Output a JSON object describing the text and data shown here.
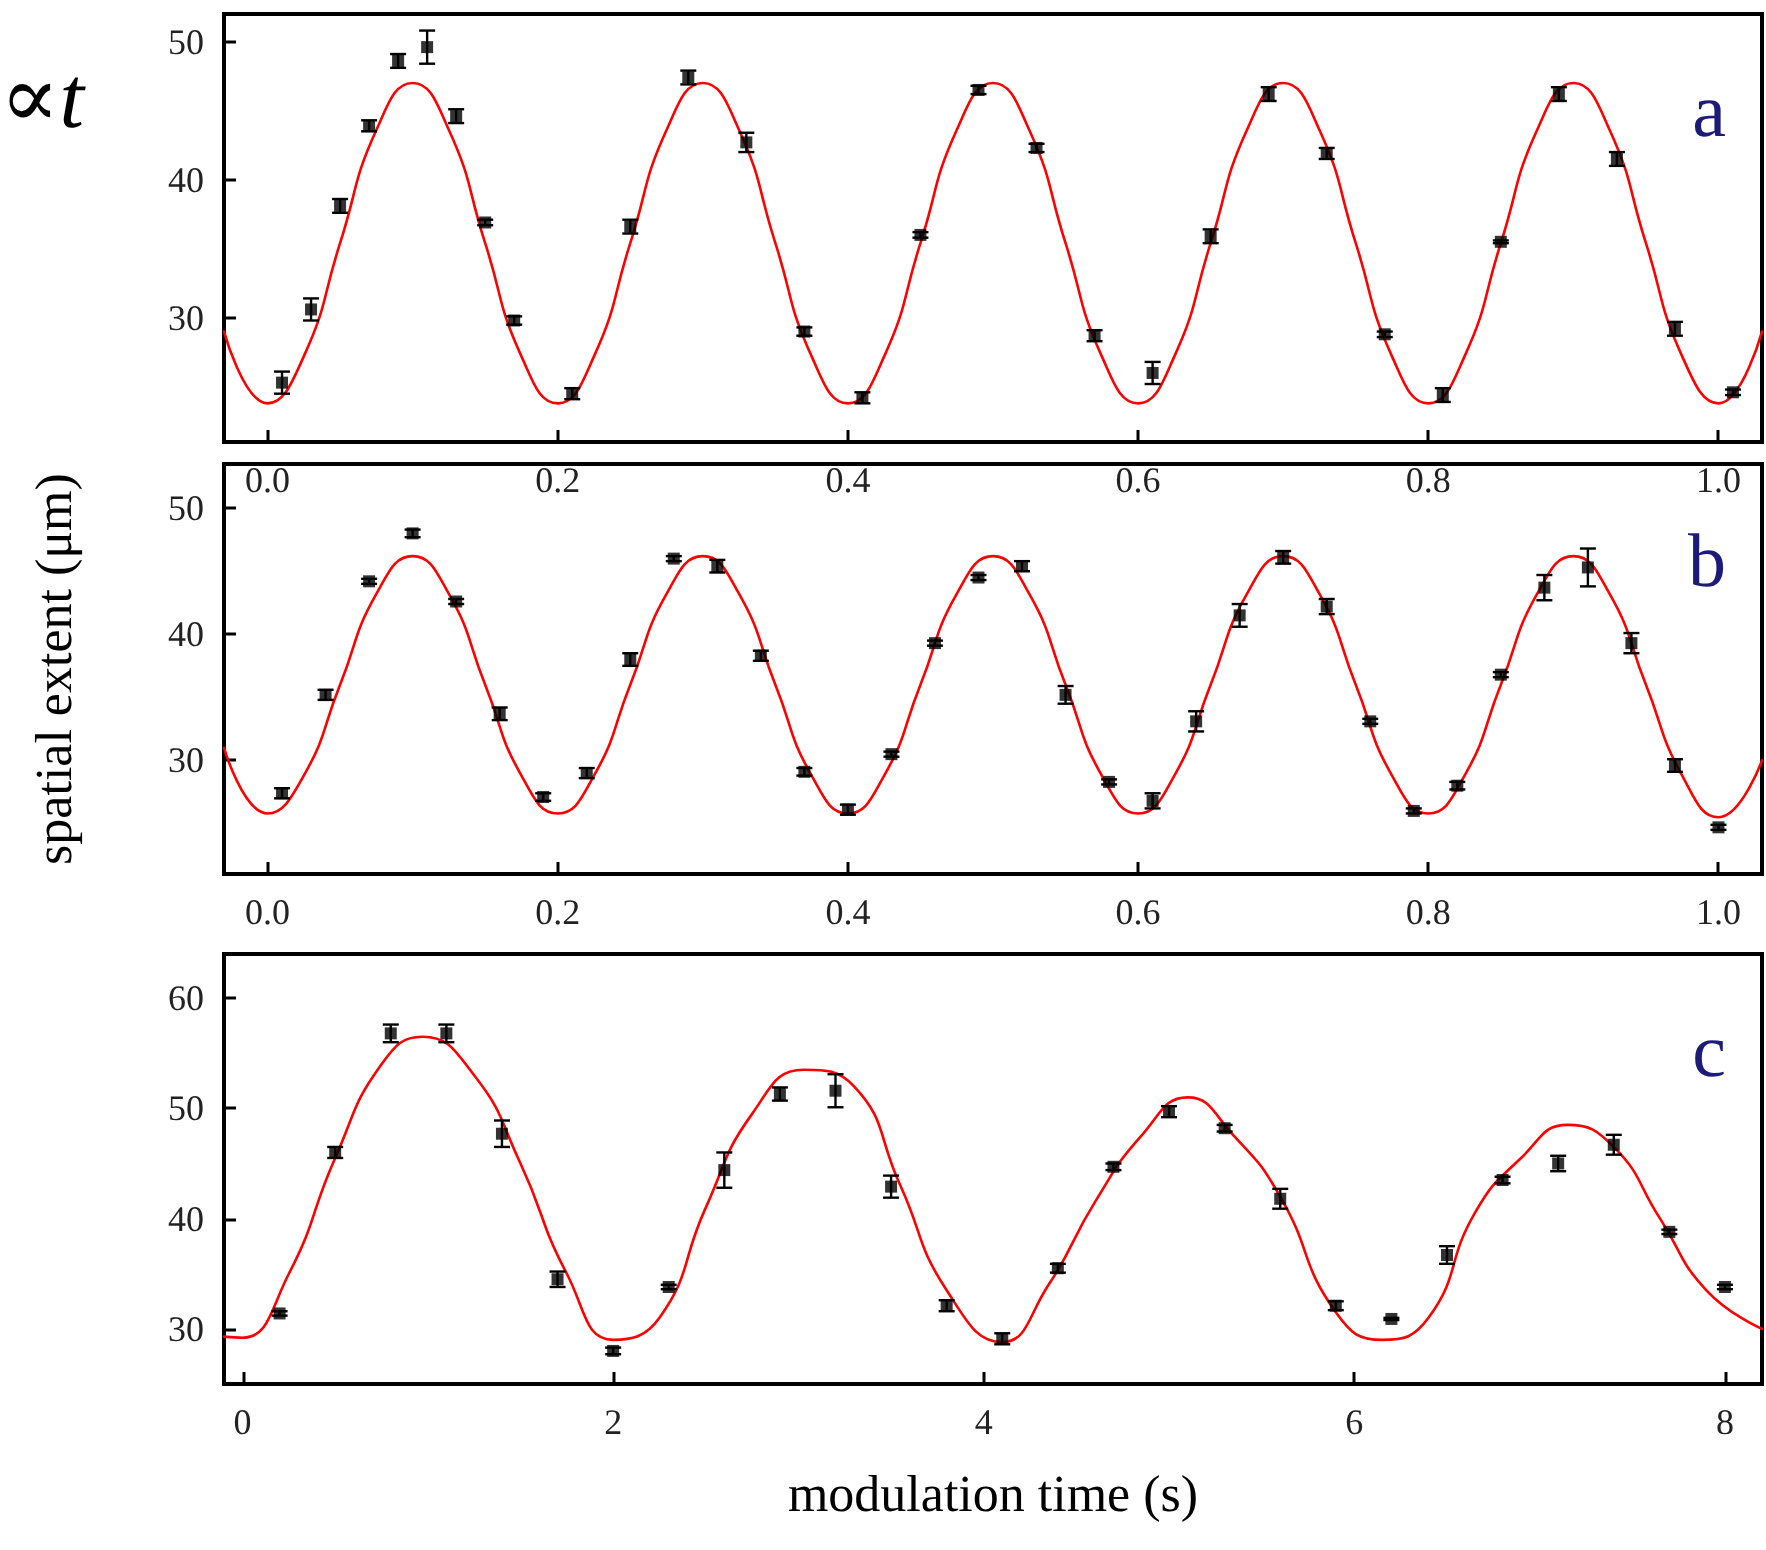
{
  "chart_data": [
    {
      "type": "scatter",
      "annotations": [
        "∝t",
        "a"
      ],
      "xlim": [
        -0.03,
        1.03
      ],
      "xticks": [
        {
          "value": 0,
          "label": "0.0"
        },
        {
          "value": 0.2,
          "label": "0.2"
        },
        {
          "value": 0.4,
          "label": "0.4"
        },
        {
          "value": 0.6,
          "label": "0.6"
        },
        {
          "value": 0.8,
          "label": "0.8"
        },
        {
          "value": 1,
          "label": "1.0"
        }
      ],
      "ylim": [
        21,
        52
      ],
      "yticks": [
        30,
        40,
        50
      ],
      "grid": false,
      "series": [
        {
          "type": "scatter",
          "color": "#000000",
          "marker": "square",
          "x": [
            0.01,
            0.03,
            0.05,
            0.07,
            0.09,
            0.11,
            0.13,
            0.15,
            0.17,
            0.21,
            0.25,
            0.29,
            0.33,
            0.37,
            0.41,
            0.45,
            0.49,
            0.53,
            0.57,
            0.61,
            0.65,
            0.69,
            0.73,
            0.77,
            0.81,
            0.85,
            0.89,
            0.93,
            0.97,
            1.01
          ],
          "values": [
            25.3,
            30.6,
            38.1,
            43.9,
            48.6,
            49.6,
            44.6,
            36.9,
            29.8,
            24.5,
            36.6,
            47.4,
            42.7,
            29.0,
            24.2,
            36.0,
            46.5,
            42.3,
            28.7,
            26.0,
            35.9,
            46.2,
            41.9,
            28.8,
            24.4,
            35.5,
            46.2,
            41.5,
            29.2,
            24.6
          ],
          "errors": [
            0.8,
            0.8,
            0.5,
            0.4,
            0.5,
            1.2,
            0.5,
            0.2,
            0.3,
            0.4,
            0.5,
            0.5,
            0.7,
            0.3,
            0.4,
            0.2,
            0.3,
            0.3,
            0.4,
            0.8,
            0.5,
            0.5,
            0.4,
            0.2,
            0.5,
            0.1,
            0.5,
            0.5,
            0.5,
            0.2
          ]
        },
        {
          "type": "line",
          "color": "#ff0000",
          "marker": "none",
          "x": [
            -0.03,
            0,
            0.025,
            0.05,
            0.075,
            0.1,
            0.125,
            0.15,
            0.175,
            0.2,
            0.225,
            0.25,
            0.275,
            0.3,
            0.325,
            0.35,
            0.375,
            0.4,
            0.425,
            0.45,
            0.475,
            0.5,
            0.525,
            0.55,
            0.575,
            0.6,
            0.625,
            0.65,
            0.675,
            0.7,
            0.725,
            0.75,
            0.775,
            0.8,
            0.825,
            0.85,
            0.875,
            0.9,
            0.925,
            0.95,
            0.975,
            1.0,
            1.03
          ],
          "values": [
            29,
            23.8,
            27.2,
            35.4,
            43.6,
            47,
            43.6,
            35.4,
            27.2,
            23.8,
            27.2,
            35.4,
            43.6,
            47,
            43.6,
            35.4,
            27.2,
            23.8,
            27.2,
            35.4,
            43.6,
            47,
            43.6,
            35.4,
            27.2,
            23.8,
            27.2,
            35.4,
            43.6,
            47,
            43.6,
            35.4,
            27.2,
            23.8,
            27.2,
            35.4,
            43.6,
            47,
            43.6,
            35.4,
            27.2,
            23.8,
            29
          ]
        }
      ]
    },
    {
      "type": "scatter",
      "annotations": [
        "b"
      ],
      "ylabel": "spatial extent (μm)",
      "xlim": [
        -0.03,
        1.03
      ],
      "xticks": [
        {
          "value": 0,
          "label": "0.0"
        },
        {
          "value": 0.2,
          "label": "0.2"
        },
        {
          "value": 0.4,
          "label": "0.4"
        },
        {
          "value": 0.6,
          "label": "0.6"
        },
        {
          "value": 0.8,
          "label": "0.8"
        },
        {
          "value": 1,
          "label": "1.0"
        }
      ],
      "ylim": [
        21,
        53.5
      ],
      "yticks": [
        30,
        40,
        50
      ],
      "grid": false,
      "series": [
        {
          "type": "scatter",
          "color": "#000000",
          "marker": "square",
          "x": [
            0.01,
            0.04,
            0.07,
            0.1,
            0.13,
            0.16,
            0.19,
            0.22,
            0.25,
            0.28,
            0.31,
            0.34,
            0.37,
            0.4,
            0.43,
            0.46,
            0.49,
            0.52,
            0.55,
            0.58,
            0.61,
            0.64,
            0.67,
            0.7,
            0.73,
            0.76,
            0.79,
            0.82,
            0.85,
            0.88,
            0.91,
            0.94,
            0.97,
            1.0
          ],
          "values": [
            27.4,
            35.2,
            44.2,
            48.0,
            42.6,
            33.7,
            27.1,
            29.0,
            38.0,
            46.0,
            45.4,
            38.3,
            29.1,
            26.1,
            30.5,
            39.3,
            44.5,
            45.4,
            35.2,
            28.3,
            26.8,
            33.1,
            41.5,
            46.1,
            42.2,
            33.1,
            26.0,
            28.0,
            36.8,
            43.7,
            45.3,
            39.3,
            29.6,
            24.7
          ],
          "errors": [
            0.4,
            0.4,
            0.2,
            0.3,
            0.2,
            0.5,
            0.3,
            0.4,
            0.5,
            0.2,
            0.5,
            0.4,
            0.3,
            0.4,
            0.2,
            0.2,
            0.2,
            0.4,
            0.7,
            0.2,
            0.6,
            0.8,
            0.9,
            0.5,
            0.6,
            0.2,
            0.2,
            0.3,
            0.2,
            1.0,
            1.5,
            0.8,
            0.5,
            0.2
          ]
        },
        {
          "type": "line",
          "color": "#ff0000",
          "marker": "none",
          "x": [
            -0.03,
            0,
            0.025,
            0.05,
            0.075,
            0.1,
            0.125,
            0.15,
            0.175,
            0.2,
            0.225,
            0.25,
            0.275,
            0.3,
            0.325,
            0.35,
            0.375,
            0.4,
            0.425,
            0.45,
            0.475,
            0.5,
            0.525,
            0.55,
            0.575,
            0.6,
            0.625,
            0.65,
            0.675,
            0.7,
            0.725,
            0.75,
            0.775,
            0.8,
            0.825,
            0.85,
            0.875,
            0.9,
            0.925,
            0.95,
            0.975,
            1.0,
            1.03
          ],
          "values": [
            31,
            25.8,
            28.8,
            36,
            43.2,
            46.2,
            43.2,
            36,
            28.8,
            25.8,
            28.8,
            36,
            43.2,
            46.2,
            43.2,
            36,
            28.8,
            25.8,
            28.8,
            36,
            43.2,
            46.2,
            43.2,
            36,
            28.8,
            25.8,
            28.8,
            36,
            43.2,
            46.2,
            43.2,
            36,
            28.8,
            25.8,
            28.8,
            36,
            43.2,
            46.2,
            43.2,
            36,
            28.8,
            25.5,
            30
          ]
        }
      ]
    },
    {
      "type": "scatter",
      "annotations": [
        "c"
      ],
      "xlabel": "modulation time (s)",
      "xlim": [
        -0.1,
        8.2
      ],
      "xticks": [
        0,
        2,
        4,
        6,
        8
      ],
      "ylim": [
        25,
        64
      ],
      "yticks": [
        30,
        40,
        50,
        60
      ],
      "grid": false,
      "series": [
        {
          "type": "scatter",
          "color": "#000000",
          "marker": "square",
          "x": [
            0.2,
            0.5,
            0.8,
            1.1,
            1.4,
            1.7,
            2.0,
            2.3,
            2.6,
            2.9,
            3.2,
            3.5,
            3.8,
            4.1,
            4.4,
            4.7,
            5.0,
            5.3,
            5.6,
            5.9,
            6.2,
            6.5,
            6.8,
            7.1,
            7.4,
            7.7,
            8.0
          ],
          "values": [
            31.4,
            46.0,
            56.8,
            56.8,
            47.7,
            34.5,
            28.0,
            33.8,
            44.4,
            51.3,
            51.6,
            42.9,
            32.1,
            29.1,
            35.5,
            44.7,
            49.7,
            48.2,
            41.8,
            32.1,
            30.9,
            36.7,
            43.5,
            45.0,
            46.7,
            38.8,
            33.8
          ],
          "errors": [
            0.2,
            0.5,
            0.8,
            0.8,
            1.2,
            0.7,
            0.3,
            0.2,
            1.6,
            0.6,
            1.5,
            1.0,
            0.5,
            0.5,
            0.4,
            0.3,
            0.5,
            0.3,
            0.9,
            0.4,
            0.1,
            0.8,
            0.3,
            0.7,
            0.9,
            0.2,
            0.2
          ]
        },
        {
          "type": "line",
          "color": "#ff0000",
          "marker": "none",
          "x": [
            -0.1,
            0,
            0.25,
            0.5,
            0.75,
            0.97,
            1.25,
            1.5,
            1.75,
            2.0,
            2.25,
            2.5,
            2.75,
            3.03,
            3.3,
            3.55,
            3.8,
            4.1,
            4.35,
            4.6,
            4.85,
            5.1,
            5.35,
            5.6,
            5.9,
            6.15,
            6.4,
            6.65,
            6.9,
            7.15,
            7.4,
            7.65,
            7.9,
            8.2
          ],
          "values": [
            29.3,
            29.2,
            35,
            45.5,
            54,
            56.5,
            53,
            45,
            35,
            29,
            31,
            41,
            49.5,
            53.5,
            52,
            43,
            33.5,
            28.8,
            34,
            41.5,
            47.5,
            51,
            47.5,
            42,
            31.5,
            29,
            31,
            40.5,
            45.5,
            48.5,
            46.5,
            40,
            33.5,
            30
          ]
        }
      ]
    }
  ]
}
